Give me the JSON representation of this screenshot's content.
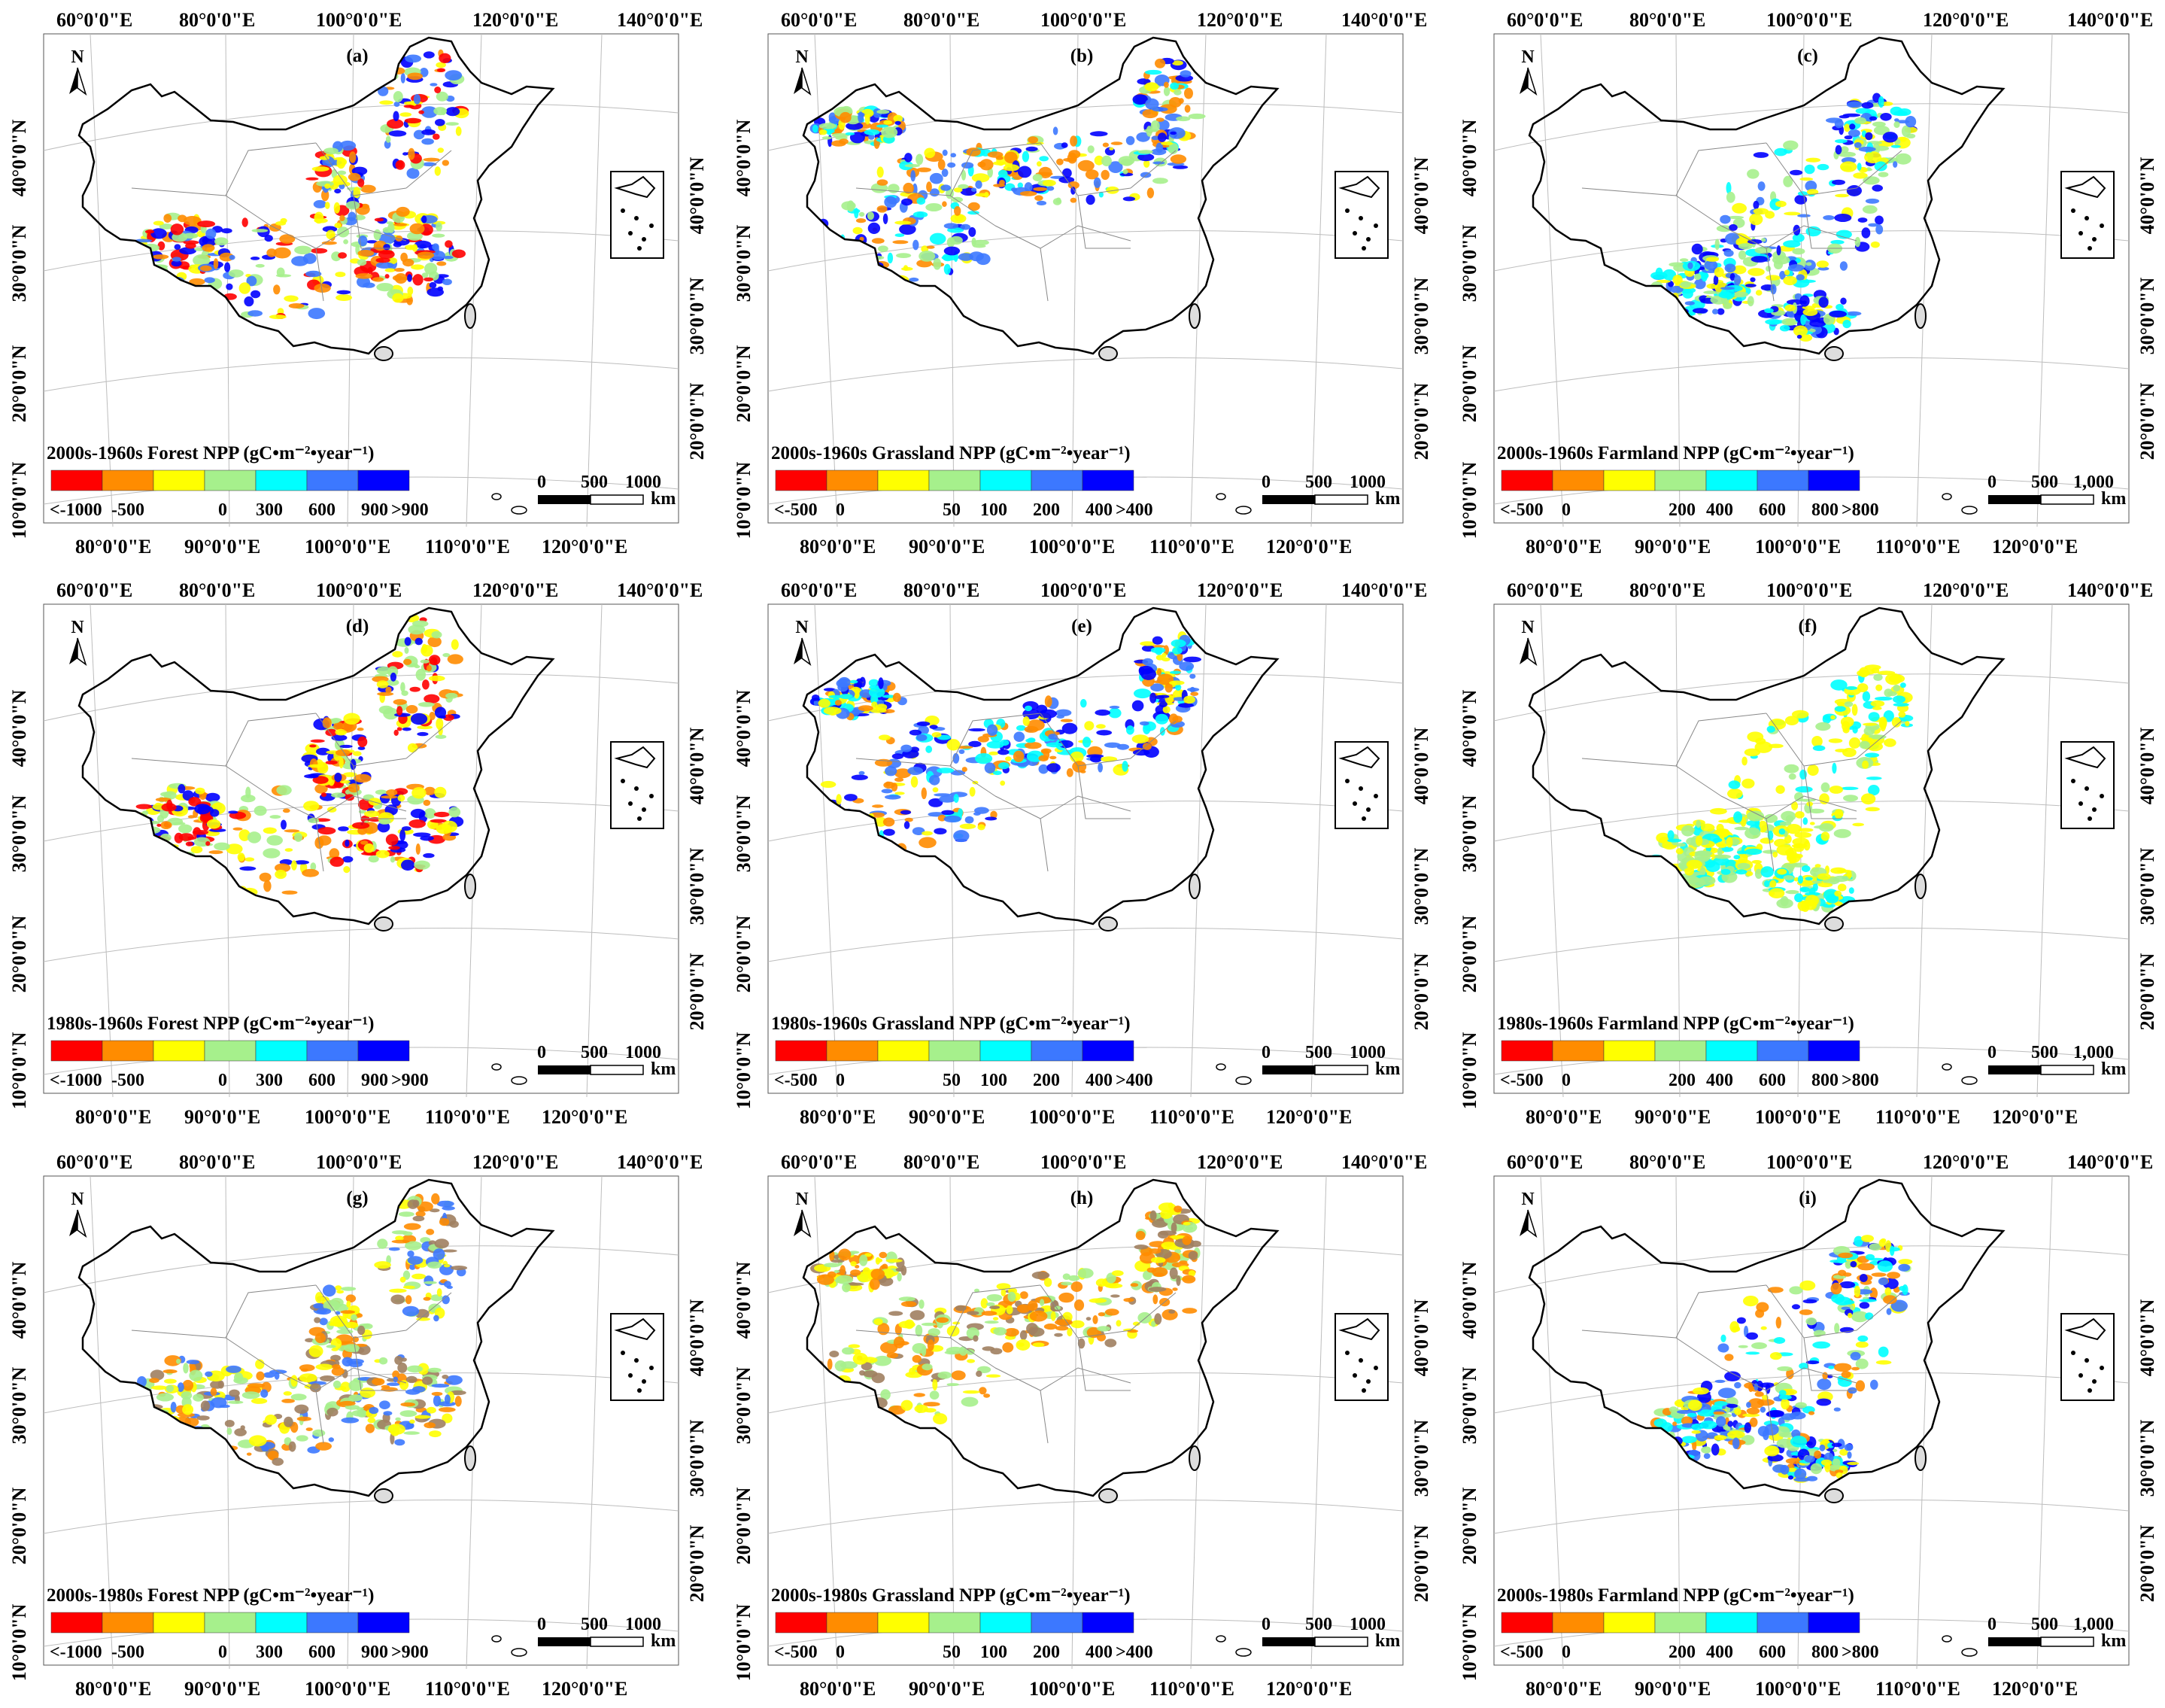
{
  "lon_labels_top": [
    "60°0'0\"E",
    "80°0'0\"E",
    "100°0'0\"E",
    "120°0'0\"E",
    "140°0'0\"E"
  ],
  "lon_labels_bottom": [
    "80°0'0\"E",
    "90°0'0\"E",
    "100°0'0\"E",
    "110°0'0\"E",
    "120°0'0\"E"
  ],
  "lat_labels_left": [
    "40°0'0\"N",
    "30°0'0\"N",
    "20°0'0\"N",
    "10°0'0\"N"
  ],
  "lat_labels_right": [
    "40°0'0\"N",
    "30°0'0\"N",
    "20°0'0\"N"
  ],
  "north_label": "N",
  "km_unit": "km",
  "legend_types": {
    "forest": {
      "colors": [
        "#ff0000",
        "#ff8c00",
        "#ffff00",
        "#a6f08c",
        "#00ffff",
        "#3c78ff",
        "#0000ff"
      ],
      "ticks": [
        "<-1000",
        "-500",
        "0",
        "300",
        "600",
        "900",
        ">900"
      ]
    },
    "grassland": {
      "colors": [
        "#ff0000",
        "#ff8c00",
        "#ffff00",
        "#a6f08c",
        "#00ffff",
        "#3c78ff",
        "#0000ff"
      ],
      "ticks": [
        "<-500",
        "0",
        "50",
        "100",
        "200",
        "400",
        ">400"
      ]
    },
    "farmland": {
      "colors": [
        "#ff0000",
        "#ff8c00",
        "#ffff00",
        "#a6f08c",
        "#00ffff",
        "#3c78ff",
        "#0000ff"
      ],
      "ticks": [
        "<-500",
        "0",
        "200",
        "400",
        "600",
        "800",
        ">800"
      ]
    }
  },
  "panels": [
    {
      "id": "(a)",
      "title": "2000s-1960s Forest NPP (gC•m⁻²•year⁻¹)",
      "legend": "forest",
      "scale": [
        "0",
        "500",
        "1000"
      ],
      "palette": [
        "#ff0000",
        "#ff8c00",
        "#0000ff",
        "#3c78ff",
        "#ffff00",
        "#a6f08c"
      ]
    },
    {
      "id": "(b)",
      "title": "2000s-1960s Grassland NPP (gC•m⁻²•year⁻¹)",
      "legend": "grassland",
      "scale": [
        "0",
        "500",
        "1000"
      ],
      "palette": [
        "#ff8c00",
        "#ffff00",
        "#3c78ff",
        "#00ffff",
        "#0000ff",
        "#a6f08c"
      ]
    },
    {
      "id": "(c)",
      "title": "2000s-1960s Farmland NPP (gC•m⁻²•year⁻¹)",
      "legend": "farmland",
      "scale": [
        "0",
        "500",
        "1,000"
      ],
      "palette": [
        "#a6f08c",
        "#00ffff",
        "#ffff00",
        "#3c78ff",
        "#0000ff"
      ]
    },
    {
      "id": "(d)",
      "title": "1980s-1960s Forest NPP (gC•m⁻²•year⁻¹)",
      "legend": "forest",
      "scale": [
        "0",
        "500",
        "1000"
      ],
      "palette": [
        "#ff0000",
        "#ff8c00",
        "#0000ff",
        "#a6f08c",
        "#ffff00"
      ]
    },
    {
      "id": "(e)",
      "title": "1980s-1960s Grassland NPP (gC•m⁻²•year⁻¹)",
      "legend": "grassland",
      "scale": [
        "0",
        "500",
        "1000"
      ],
      "palette": [
        "#ff8c00",
        "#00ffff",
        "#3c78ff",
        "#ffff00",
        "#0000ff"
      ]
    },
    {
      "id": "(f)",
      "title": "1980s-1960s Farmland NPP (gC•m⁻²•year⁻¹)",
      "legend": "farmland",
      "scale": [
        "0",
        "500",
        "1,000"
      ],
      "palette": [
        "#ffff00",
        "#a6f08c",
        "#00ffff",
        "#ffff00"
      ]
    },
    {
      "id": "(g)",
      "title": "2000s-1980s Forest NPP (gC•m⁻²•year⁻¹)",
      "legend": "forest",
      "scale": [
        "0",
        "500",
        "1000"
      ],
      "palette": [
        "#a6f08c",
        "#ffff00",
        "#3c78ff",
        "#a08060",
        "#ff8c00"
      ]
    },
    {
      "id": "(h)",
      "title": "2000s-1980s Grassland NPP (gC•m⁻²•year⁻¹)",
      "legend": "grassland",
      "scale": [
        "0",
        "500",
        "1000"
      ],
      "palette": [
        "#a6f08c",
        "#ffff00",
        "#ff8c00",
        "#a08060"
      ]
    },
    {
      "id": "(i)",
      "title": "2000s-1980s Farmland NPP (gC•m⁻²•year⁻¹)",
      "legend": "farmland",
      "scale": [
        "0",
        "500",
        "1,000"
      ],
      "palette": [
        "#ff8c00",
        "#ffff00",
        "#a6f08c",
        "#00ffff",
        "#3c78ff",
        "#0000ff"
      ]
    }
  ]
}
